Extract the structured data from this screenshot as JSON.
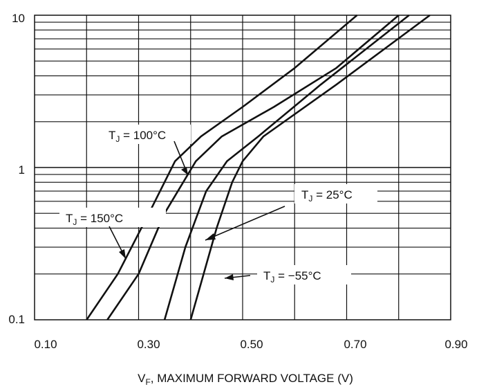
{
  "chart_data": {
    "type": "line",
    "title": "",
    "xlabel": {
      "main": "V",
      "sub": "F",
      "rest": ", MAXIMUM FORWARD VOLTAGE (V)"
    },
    "ylabel": "",
    "xlim": [
      0.1,
      0.9
    ],
    "ylim": [
      0.1,
      10
    ],
    "y_scale": "log",
    "grid": true,
    "x_ticks": [
      "0.10",
      "0.30",
      "0.50",
      "0.70",
      "0.90"
    ],
    "y_ticks": [
      "0.1",
      "1",
      "10"
    ],
    "series": [
      {
        "name": {
          "pre": "T",
          "sub": "J",
          "post": " = 150°C"
        },
        "x": [
          0.2,
          0.26,
          0.32,
          0.37,
          0.42,
          0.5,
          0.6,
          0.72
        ],
        "y": [
          0.1,
          0.2,
          0.5,
          1.1,
          1.6,
          2.5,
          4.5,
          10
        ]
      },
      {
        "name": {
          "pre": "T",
          "sub": "J",
          "post": " = 100°C"
        },
        "x": [
          0.24,
          0.3,
          0.35,
          0.41,
          0.46,
          0.56,
          0.68,
          0.8
        ],
        "y": [
          0.1,
          0.2,
          0.5,
          1.1,
          1.6,
          2.5,
          4.5,
          10
        ]
      },
      {
        "name": {
          "pre": "T",
          "sub": "J",
          "post": " = 25°C"
        },
        "x": [
          0.35,
          0.39,
          0.43,
          0.47,
          0.53,
          0.65,
          0.82
        ],
        "y": [
          0.1,
          0.3,
          0.7,
          1.1,
          1.6,
          3.5,
          10
        ]
      },
      {
        "name": {
          "pre": "T",
          "sub": "J",
          "post": " = −55°C"
        },
        "x": [
          0.4,
          0.45,
          0.48,
          0.5,
          0.54,
          0.68,
          0.86
        ],
        "y": [
          0.1,
          0.4,
          0.8,
          1.1,
          1.6,
          3.5,
          10
        ]
      }
    ]
  }
}
